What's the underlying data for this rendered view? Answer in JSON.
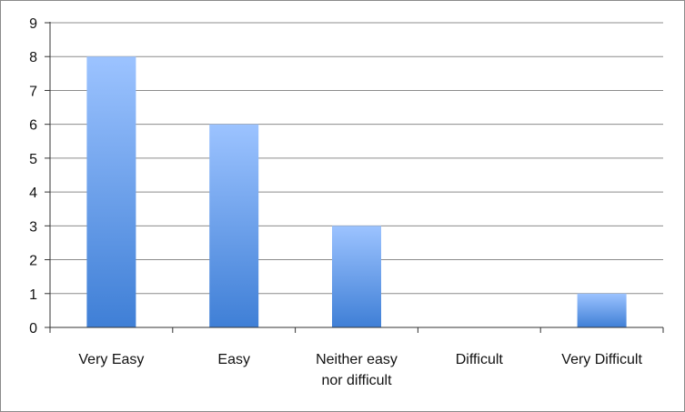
{
  "chart_data": {
    "type": "bar",
    "title": "",
    "xlabel": "",
    "ylabel": "",
    "categories": [
      [
        "Very Easy"
      ],
      [
        "Easy"
      ],
      [
        "Neither easy",
        "nor difficult"
      ],
      [
        "Difficult"
      ],
      [
        "Very Difficult"
      ]
    ],
    "values": [
      8,
      6,
      3,
      0,
      1
    ],
    "ylim": [
      0,
      9
    ],
    "yticks": [
      "0",
      "1",
      "2",
      "3",
      "4",
      "5",
      "6",
      "7",
      "8",
      "9"
    ],
    "grid": true,
    "legend": "none",
    "colors": {
      "bar_top": "#9cc3ff",
      "bar_bottom": "#3f7fd6",
      "grid": "#8c8c8c",
      "axis": "#333333"
    }
  }
}
